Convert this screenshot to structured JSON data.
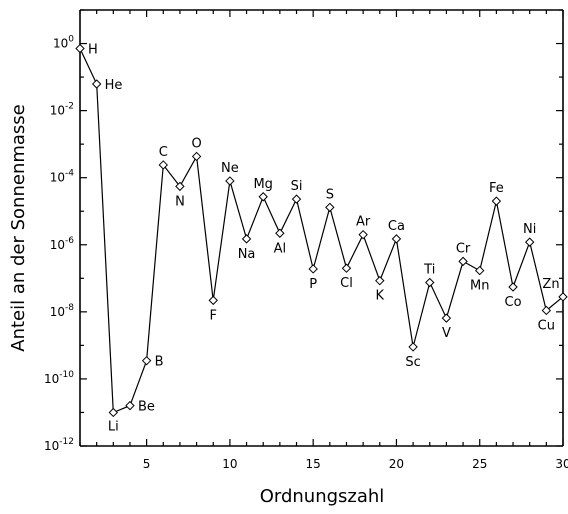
{
  "chart_data": {
    "type": "line",
    "xlabel": "Ordnungszahl",
    "ylabel": "Anteil an der Sonnenmasse",
    "xlim": [
      1,
      30
    ],
    "ylim": [
      1e-12,
      10
    ],
    "yscale": "log",
    "x_ticks": [
      5,
      10,
      15,
      20,
      25,
      30
    ],
    "y_ticks": [
      {
        "mantissa": "10",
        "exp": "0"
      },
      {
        "mantissa": "10",
        "exp": "-2"
      },
      {
        "mantissa": "10",
        "exp": "-4"
      },
      {
        "mantissa": "10",
        "exp": "-6"
      },
      {
        "mantissa": "10",
        "exp": "-8"
      },
      {
        "mantissa": "10",
        "exp": "-10"
      },
      {
        "mantissa": "10",
        "exp": "-12"
      }
    ],
    "y_tick_values": [
      1,
      0.01,
      0.0001,
      1e-06,
      1e-08,
      1e-10,
      1e-12
    ],
    "points": [
      {
        "x": 1,
        "y": 0.71,
        "label": "H"
      },
      {
        "x": 2,
        "y": 0.062,
        "label": "He"
      },
      {
        "x": 3,
        "y": 1e-11,
        "label": "Li"
      },
      {
        "x": 4,
        "y": 1.6e-11,
        "label": "Be"
      },
      {
        "x": 5,
        "y": 3.5e-10,
        "label": "B"
      },
      {
        "x": 6,
        "y": 0.00024,
        "label": "C"
      },
      {
        "x": 7,
        "y": 5.5e-05,
        "label": "N"
      },
      {
        "x": 8,
        "y": 0.00043,
        "label": "O"
      },
      {
        "x": 9,
        "y": 2.2e-08,
        "label": "F"
      },
      {
        "x": 10,
        "y": 8e-05,
        "label": "Ne"
      },
      {
        "x": 11,
        "y": 1.5e-06,
        "label": "Na"
      },
      {
        "x": 12,
        "y": 2.7e-05,
        "label": "Mg"
      },
      {
        "x": 13,
        "y": 2.2e-06,
        "label": "Al"
      },
      {
        "x": 14,
        "y": 2.3e-05,
        "label": "Si"
      },
      {
        "x": 15,
        "y": 1.9e-07,
        "label": "P"
      },
      {
        "x": 16,
        "y": 1.3e-05,
        "label": "S"
      },
      {
        "x": 17,
        "y": 2e-07,
        "label": "Cl"
      },
      {
        "x": 18,
        "y": 2e-06,
        "label": "Ar"
      },
      {
        "x": 19,
        "y": 8.5e-08,
        "label": "K"
      },
      {
        "x": 20,
        "y": 1.5e-06,
        "label": "Ca"
      },
      {
        "x": 21,
        "y": 9e-10,
        "label": "Sc"
      },
      {
        "x": 22,
        "y": 7.5e-08,
        "label": "Ti"
      },
      {
        "x": 23,
        "y": 6.5e-09,
        "label": "V"
      },
      {
        "x": 24,
        "y": 3.2e-07,
        "label": "Cr"
      },
      {
        "x": 25,
        "y": 1.7e-07,
        "label": "Mn"
      },
      {
        "x": 26,
        "y": 2e-05,
        "label": "Fe"
      },
      {
        "x": 27,
        "y": 5.5e-08,
        "label": "Co"
      },
      {
        "x": 28,
        "y": 1.2e-06,
        "label": "Ni"
      },
      {
        "x": 29,
        "y": 1.1e-08,
        "label": "Cu"
      },
      {
        "x": 30,
        "y": 2.8e-08,
        "label": "Zn"
      }
    ],
    "grid": false,
    "legend": "none"
  }
}
